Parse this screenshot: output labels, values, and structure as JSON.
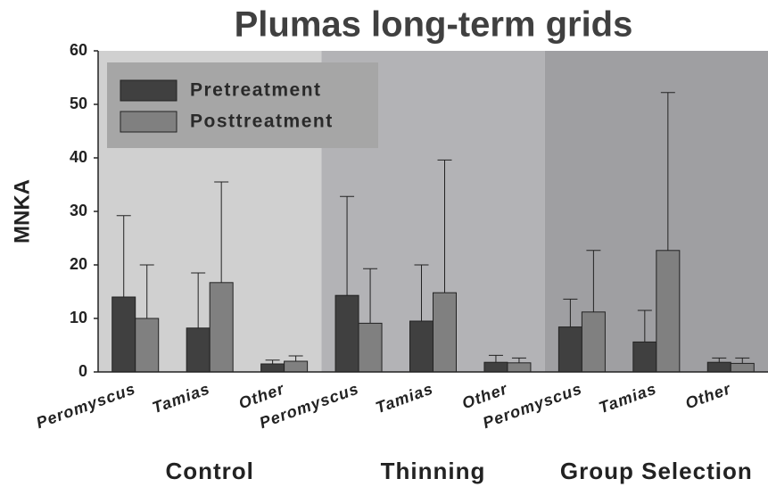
{
  "chart_data": {
    "type": "bar",
    "title": "Plumas long-term grids",
    "y_label": "MNKA",
    "categories": [
      "Peromyscus",
      "Tamias",
      "Other",
      "Peromyscus",
      "Tamias",
      "Other",
      "Peromyscus",
      "Tamias",
      "Other"
    ],
    "groups": [
      "Control",
      "Thinning",
      "Group Selection"
    ],
    "group_colors": [
      "#d0d0d0",
      "#b3b3b6",
      "#9f9fa2"
    ],
    "series": [
      {
        "name": "Pretreatment",
        "color": "#404040",
        "values": [
          14,
          8.2,
          1.5,
          14.3,
          9.5,
          1.8,
          8.4,
          5.6,
          1.8
        ],
        "errors": [
          15.2,
          10.3,
          0.7,
          18.5,
          10.5,
          1.3,
          5.2,
          5.9,
          0.8
        ]
      },
      {
        "name": "Posttreatment",
        "color": "#808080",
        "values": [
          10,
          16.7,
          2,
          9.1,
          14.8,
          1.7,
          11.2,
          22.7,
          1.6
        ],
        "errors": [
          10,
          18.8,
          1,
          10.2,
          24.8,
          0.9,
          11.5,
          29.5,
          1
        ]
      }
    ],
    "ylim": [
      0,
      60
    ],
    "yticks": [
      0,
      10,
      20,
      30,
      40,
      50,
      60
    ],
    "legend": "top-left"
  }
}
